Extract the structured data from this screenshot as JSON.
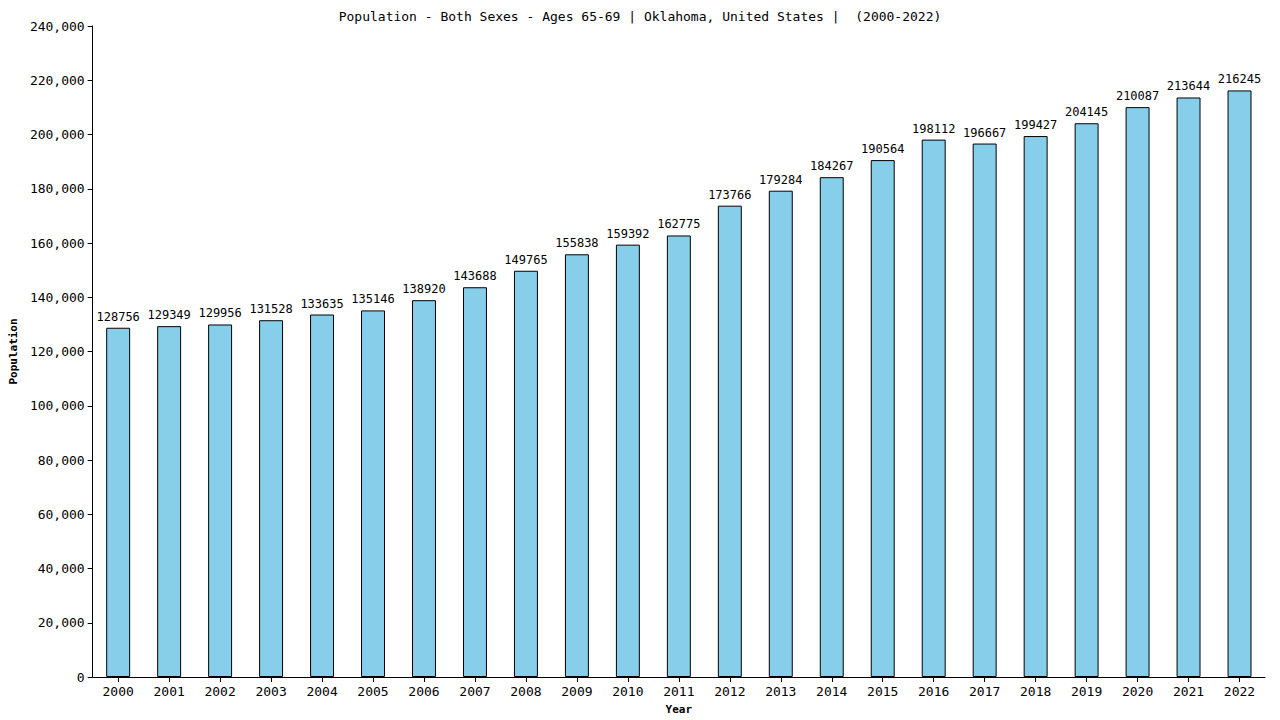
{
  "chart_data": {
    "type": "bar",
    "title": "Population - Both Sexes - Ages 65-69 | Oklahoma, United States |  (2000-2022)",
    "x_label": "Year",
    "y_label": "Population",
    "categories": [
      "2000",
      "2001",
      "2002",
      "2003",
      "2004",
      "2005",
      "2006",
      "2007",
      "2008",
      "2009",
      "2010",
      "2011",
      "2012",
      "2013",
      "2014",
      "2015",
      "2016",
      "2017",
      "2018",
      "2019",
      "2020",
      "2021",
      "2022"
    ],
    "values": [
      128756,
      129349,
      129956,
      131528,
      133635,
      135146,
      138920,
      143688,
      149765,
      155838,
      159392,
      162775,
      173766,
      179284,
      184267,
      190564,
      198112,
      196667,
      199427,
      204145,
      210087,
      213644,
      216245
    ],
    "color": "#87ceeb",
    "ylim": [
      0,
      240000
    ],
    "yticks": [
      0,
      20000,
      40000,
      60000,
      80000,
      100000,
      120000,
      140000,
      160000,
      180000,
      200000,
      220000,
      240000
    ],
    "grid": false,
    "data_labels": true
  }
}
